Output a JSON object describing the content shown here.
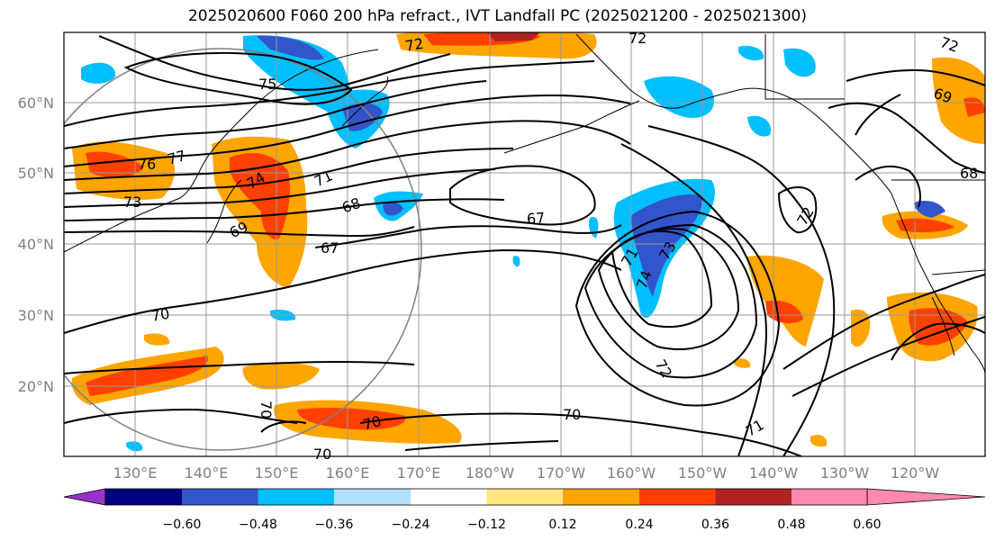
{
  "title": "2025020600 F060 200 hPa refract., IVT Landfall PC (2025021200 - 2025021300)",
  "latitude_labels": [
    "60°N",
    "50°N",
    "40°N",
    "30°N",
    "20°N"
  ],
  "longitude_labels": [
    "130°E",
    "140°E",
    "150°E",
    "160°E",
    "170°E",
    "180°W",
    "170°W",
    "160°W",
    "150°W",
    "140°W",
    "130°W",
    "120°W"
  ],
  "colorbar": {
    "ticks": [
      "−0.60",
      "−0.48",
      "−0.36",
      "−0.24",
      "−0.12",
      "0.12",
      "0.24",
      "0.36",
      "0.48",
      "0.60"
    ],
    "colors": [
      "#9933cc",
      "#000080",
      "#3355cc",
      "#00bfff",
      "#b3e0ff",
      "#ffffff",
      "#ffe680",
      "#ffa500",
      "#ff4000",
      "#b22222",
      "#ff88b0"
    ]
  },
  "contour_labels": [
    "72",
    "72",
    "72",
    "75",
    "69",
    "76",
    "77",
    "74",
    "73",
    "71",
    "68",
    "69",
    "67",
    "67",
    "68",
    "72",
    "71",
    "73",
    "74",
    "70",
    "72",
    "70",
    "70",
    "70",
    "70",
    "71"
  ]
}
